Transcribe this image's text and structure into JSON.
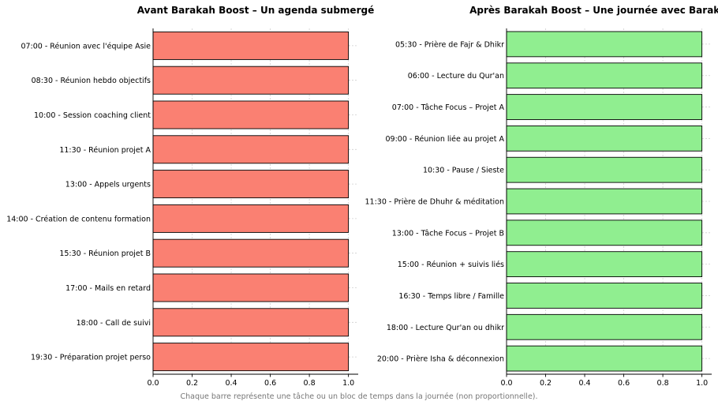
{
  "footnote": "Chaque barre représente une tâche ou un bloc de temps dans la journée (non proportionnelle).",
  "chart_data": [
    {
      "type": "bar",
      "orientation": "horizontal",
      "title": "Avant Barakah Boost – Un agenda submergé",
      "categories": [
        "07:00 - Réunion avec l'équipe Asie",
        "08:30 - Réunion hebdo objectifs",
        "10:00 - Session coaching client",
        "11:30 - Réunion projet A",
        "13:00 - Appels urgents",
        "14:00 - Création de contenu formation",
        "15:30 - Réunion projet B",
        "17:00 - Mails en retard",
        "18:00 - Call de suivi",
        "19:30 - Préparation projet perso"
      ],
      "values": [
        1,
        1,
        1,
        1,
        1,
        1,
        1,
        1,
        1,
        1
      ],
      "xlim": [
        0,
        1.05
      ],
      "xticks": [
        "0.0",
        "0.2",
        "0.4",
        "0.6",
        "0.8",
        "1.0"
      ],
      "color": "#fa8072",
      "grid": true
    },
    {
      "type": "bar",
      "orientation": "horizontal",
      "title": "Après Barakah Boost – Une journée avec Barakah",
      "categories": [
        "05:30 - Prière de Fajr & Dhikr",
        "06:00 - Lecture du Qur'an",
        "07:00 - Tâche Focus – Projet A",
        "09:00 - Réunion liée au projet A",
        "10:30 - Pause / Sieste",
        "11:30 - Prière de Dhuhr & méditation",
        "13:00 - Tâche Focus – Projet B",
        "15:00 - Réunion + suivis liés",
        "16:30 - Temps libre / Famille",
        "18:00 - Lecture Qur'an ou dhikr",
        "20:00 - Prière Isha & déconnexion"
      ],
      "values": [
        1,
        1,
        1,
        1,
        1,
        1,
        1,
        1,
        1,
        1,
        1
      ],
      "xlim": [
        0,
        1.05
      ],
      "xticks": [
        "0.0",
        "0.2",
        "0.4",
        "0.6",
        "0.8",
        "1.0"
      ],
      "color": "#90ee90",
      "grid": true
    }
  ]
}
